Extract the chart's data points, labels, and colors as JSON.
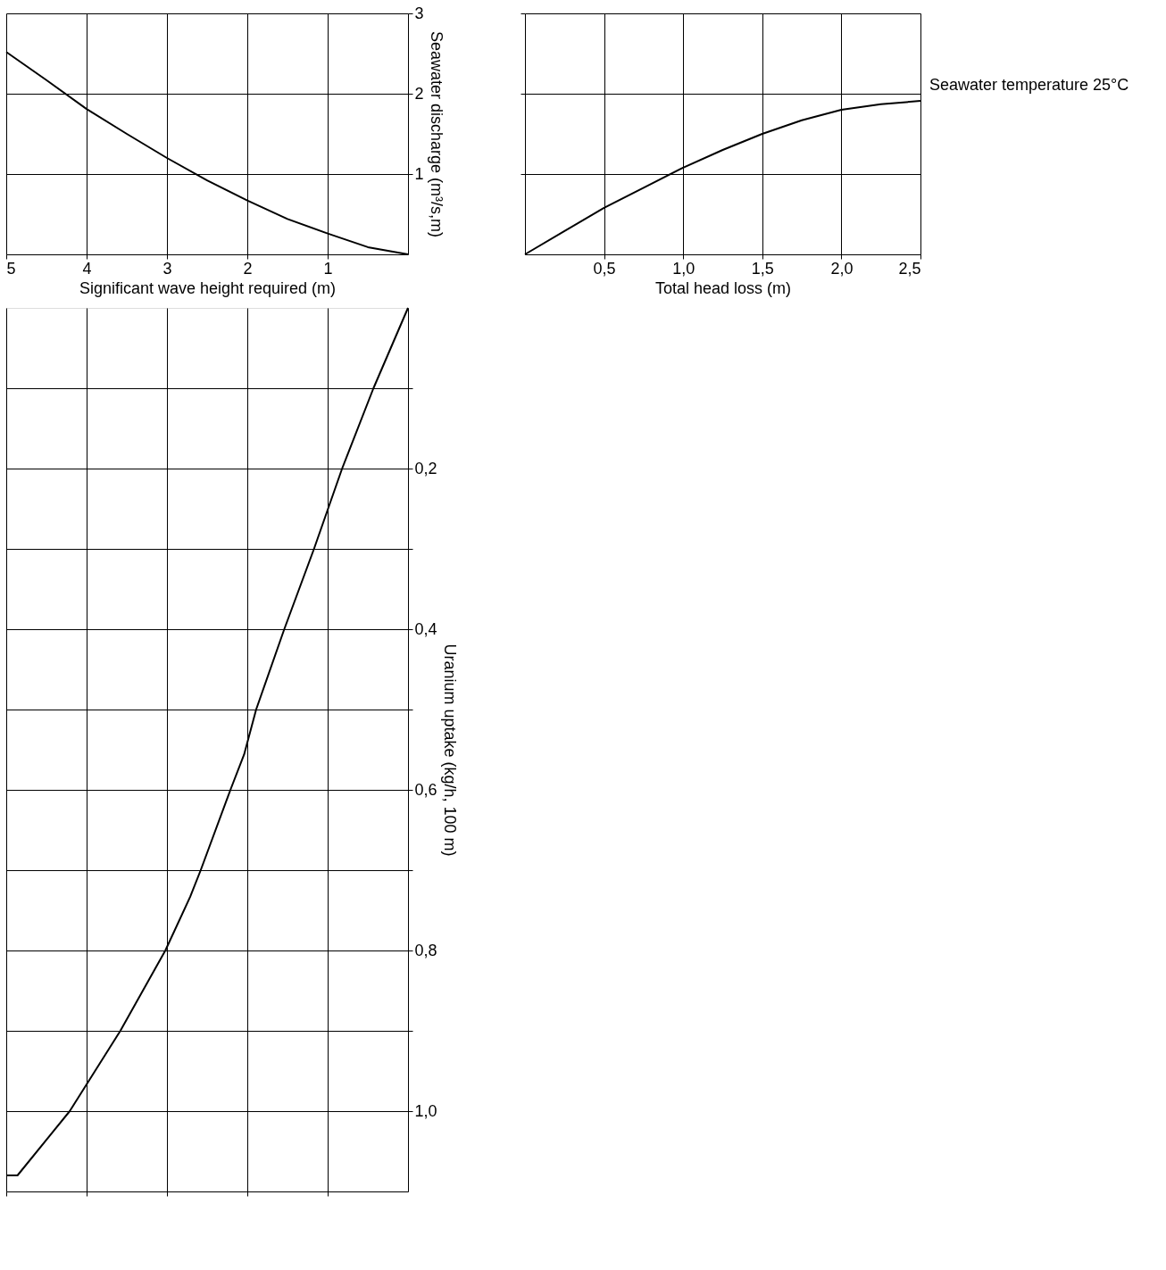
{
  "chart_data": [
    {
      "type": "line",
      "xlabel": "Significant wave height required (m)",
      "ylabel": "Seawater discharge (m³/s,m)",
      "xlim": [
        5,
        0
      ],
      "ylim": [
        0,
        3
      ],
      "xticks": [
        5,
        4,
        3,
        2,
        1
      ],
      "yticks": [
        1,
        2,
        3
      ],
      "grid": true,
      "series": [
        {
          "color": "#000000",
          "x": [
            5,
            4.5,
            4,
            3.5,
            3,
            2.5,
            2,
            1.5,
            1,
            0.5,
            0
          ],
          "values": [
            2.52,
            2.17,
            1.81,
            1.5,
            1.2,
            0.92,
            0.67,
            0.44,
            0.26,
            0.09,
            0
          ]
        }
      ]
    },
    {
      "type": "line",
      "xlabel": "Total head loss (m)",
      "xlim": [
        0,
        2.5
      ],
      "ylim": [
        0,
        3
      ],
      "xticks": [
        {
          "value": 0.5,
          "label": "0,5"
        },
        {
          "value": 1.0,
          "label": "1,0"
        },
        {
          "value": 1.5,
          "label": "1,5"
        },
        {
          "value": 2.0,
          "label": "2,0"
        },
        {
          "value": 2.5,
          "label": "2,5"
        }
      ],
      "yticks": [
        1,
        2,
        3
      ],
      "grid": true,
      "tick_labels": "x",
      "annotations": [
        "Seawater temperature 25°C"
      ],
      "series": [
        {
          "color": "#000000",
          "x": [
            0,
            0.25,
            0.5,
            0.75,
            1.0,
            1.25,
            1.5,
            1.75,
            2.0,
            2.25,
            2.5
          ],
          "values": [
            0,
            0.29,
            0.58,
            0.83,
            1.08,
            1.3,
            1.5,
            1.67,
            1.8,
            1.87,
            1.91
          ]
        }
      ]
    },
    {
      "type": "line",
      "ylabel": "Uranium uptake (kg/h, 100 m)",
      "xlim": [
        5,
        0
      ],
      "ylim": [
        1.1,
        0
      ],
      "xticks": [
        5,
        4,
        3,
        2,
        1
      ],
      "yticks": [
        {
          "value": 0.1,
          "label": null
        },
        {
          "value": 0.2,
          "label": "0,2"
        },
        {
          "value": 0.3,
          "label": null
        },
        {
          "value": 0.4,
          "label": "0,4"
        },
        {
          "value": 0.5,
          "label": null
        },
        {
          "value": 0.6,
          "label": "0,6"
        },
        {
          "value": 0.7,
          "label": null
        },
        {
          "value": 0.8,
          "label": "0,8"
        },
        {
          "value": 0.9,
          "label": null
        },
        {
          "value": 1.0,
          "label": "1,0"
        }
      ],
      "grid": true,
      "tick_labels": "y",
      "series": [
        {
          "color": "#000000",
          "x": [
            0,
            0.43,
            0.82,
            1.17,
            1.54,
            1.89,
            2.04,
            2.21,
            2.58,
            2.71,
            3.02,
            3.58,
            4.21,
            4.86,
            5.0
          ],
          "values": [
            0,
            0.1,
            0.2,
            0.3,
            0.4,
            0.5,
            0.556,
            0.6,
            0.7,
            0.733,
            0.8,
            0.9,
            1.0,
            1.08,
            1.08
          ]
        }
      ]
    }
  ]
}
